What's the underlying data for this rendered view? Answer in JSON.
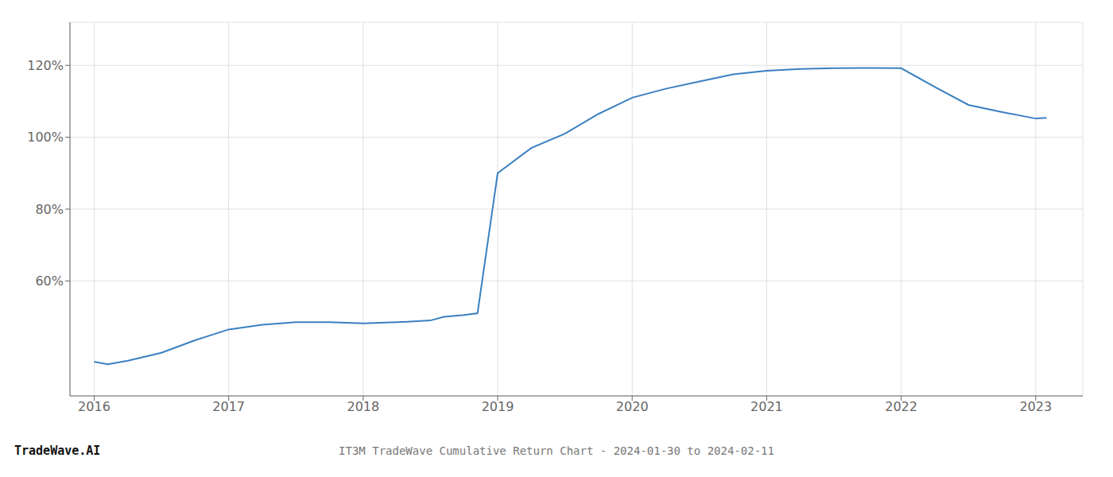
{
  "chart_data": {
    "type": "line",
    "title": "IT3M TradeWave Cumulative Return Chart - 2024-01-30 to 2024-02-11",
    "annotations": [
      "TradeWave.AI"
    ],
    "x": [
      2016.0,
      2016.1,
      2016.25,
      2016.5,
      2016.75,
      2017.0,
      2017.25,
      2017.5,
      2017.75,
      2018.0,
      2018.25,
      2018.5,
      2018.6,
      2018.75,
      2018.85,
      2019.0,
      2019.25,
      2019.5,
      2019.75,
      2020.0,
      2020.25,
      2020.5,
      2020.75,
      2021.0,
      2021.25,
      2021.5,
      2021.75,
      2022.0,
      2022.25,
      2022.5,
      2022.75,
      2023.0,
      2023.08
    ],
    "values": [
      37.5,
      36.8,
      37.8,
      40.0,
      43.5,
      46.5,
      47.8,
      48.5,
      48.5,
      48.2,
      48.5,
      49.0,
      50.0,
      50.5,
      51.0,
      90.0,
      97.0,
      101.0,
      106.5,
      111.0,
      113.5,
      115.5,
      117.5,
      118.5,
      119.0,
      119.2,
      119.3,
      119.2,
      114.0,
      109.0,
      107.0,
      105.2,
      105.4
    ],
    "color": "#3a7fc1",
    "xlim": [
      2015.82,
      2023.35
    ],
    "xticks": [
      2016,
      2017,
      2018,
      2019,
      2020,
      2021,
      2022,
      2023
    ],
    "ylim": [
      28,
      132
    ],
    "yticks": [
      {
        "value": 60,
        "label": "60%"
      },
      {
        "value": 80,
        "label": "80%"
      },
      {
        "value": 100,
        "label": "100%"
      },
      {
        "value": 120,
        "label": "120%"
      }
    ],
    "grid": true
  }
}
